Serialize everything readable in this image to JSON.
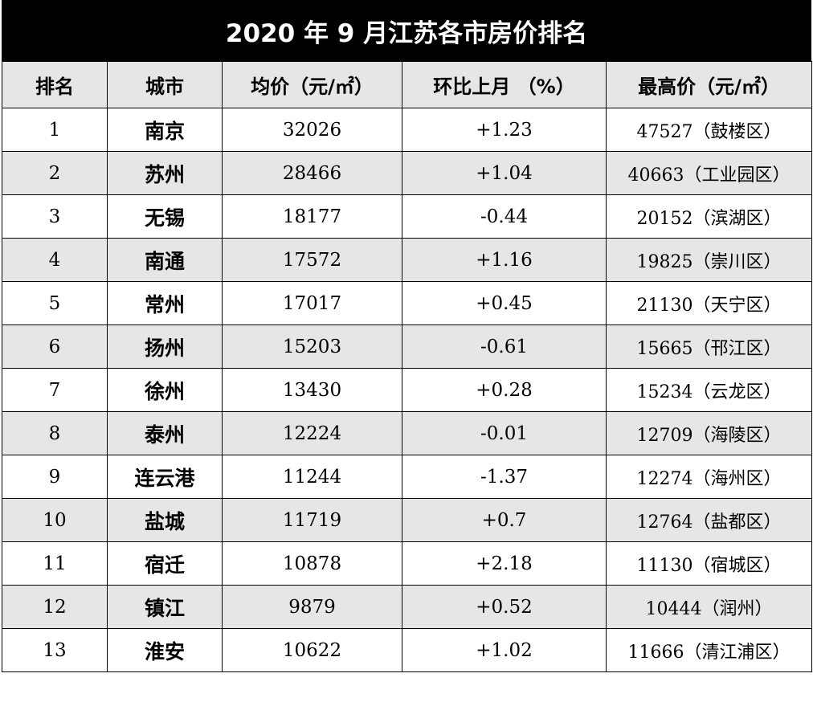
{
  "title": "2020 年 9 月江苏各市房价排名",
  "headers": [
    "排名",
    "城市",
    "均价（元/㎡）",
    "环比上月 （%）",
    "最高价（元/㎡）"
  ],
  "rows": [
    {
      "rank": "1",
      "city": "南京",
      "avg": "32026",
      "mom": "+1.23",
      "max": "47527（鼓楼区）"
    },
    {
      "rank": "2",
      "city": "苏州",
      "avg": "28466",
      "mom": "+1.04",
      "max": "40663（工业园区）"
    },
    {
      "rank": "3",
      "city": "无锡",
      "avg": "18177",
      "mom": "-0.44",
      "max": "20152（滨湖区）"
    },
    {
      "rank": "4",
      "city": "南通",
      "avg": "17572",
      "mom": "+1.16",
      "max": "19825（崇川区）"
    },
    {
      "rank": "5",
      "city": "常州",
      "avg": "17017",
      "mom": "+0.45",
      "max": "21130（天宁区）"
    },
    {
      "rank": "6",
      "city": "扬州",
      "avg": "15203",
      "mom": "-0.61",
      "max": "15665（邗江区）"
    },
    {
      "rank": "7",
      "city": "徐州",
      "avg": "13430",
      "mom": "+0.28",
      "max": "15234（云龙区）"
    },
    {
      "rank": "8",
      "city": "泰州",
      "avg": "12224",
      "mom": "-0.01",
      "max": "12709（海陵区）"
    },
    {
      "rank": "9",
      "city": "连云港",
      "avg": "11244",
      "mom": "-1.37",
      "max": "12274（海州区）"
    },
    {
      "rank": "10",
      "city": "盐城",
      "avg": "11719",
      "mom": "+0.7",
      "max": "12764（盐都区）"
    },
    {
      "rank": "11",
      "city": "宿迁",
      "avg": "10878",
      "mom": "+2.18",
      "max": "11130（宿城区）"
    },
    {
      "rank": "12",
      "city": "镇江",
      "avg": "9879",
      "mom": "+0.52",
      "max": "10444（润州）"
    },
    {
      "rank": "13",
      "city": "淮安",
      "avg": "10622",
      "mom": "+1.02",
      "max": "11666（清江浦区）"
    }
  ],
  "colors": {
    "title_bg": "#000000",
    "title_text": "#ffffff",
    "stripe": "#e6e6e6"
  }
}
